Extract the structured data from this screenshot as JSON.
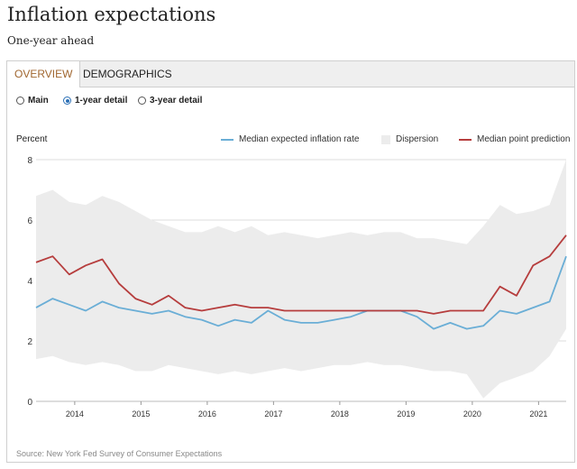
{
  "header": {
    "title": "Inflation expectations",
    "subtitle": "One-year ahead"
  },
  "tabs": [
    {
      "label": "OVERVIEW",
      "active": true
    },
    {
      "label": "DEMOGRAPHICS",
      "active": false
    }
  ],
  "views": [
    {
      "label": "Main",
      "selected": false
    },
    {
      "label": "1-year detail",
      "selected": true
    },
    {
      "label": "3-year detail",
      "selected": false
    }
  ],
  "source": "Source: New York Fed Survey of Consumer Expectations",
  "colors": {
    "median": "#6aaed6",
    "dispersion": "#ececec",
    "point": "#b63d3d",
    "active_tab": "#a0662f"
  },
  "chart_data": {
    "type": "line",
    "ylabel": "Percent",
    "ylim": [
      0,
      8
    ],
    "yticks": [
      "0",
      "2",
      "4",
      "6",
      "8"
    ],
    "xlim": [
      "2013-06",
      "2021-06"
    ],
    "xticks": [
      "2014",
      "2015",
      "2016",
      "2017",
      "2018",
      "2019",
      "2020",
      "2021"
    ],
    "legend_position": "top-right",
    "legend": [
      "Median expected inflation rate",
      "Dispersion",
      "Median point prediction"
    ],
    "median_expected_inflation_rate": {
      "x": [
        "2013-06",
        "2013-09",
        "2013-12",
        "2014-03",
        "2014-06",
        "2014-09",
        "2014-12",
        "2015-03",
        "2015-06",
        "2015-09",
        "2015-12",
        "2016-03",
        "2016-06",
        "2016-09",
        "2016-12",
        "2017-03",
        "2017-06",
        "2017-09",
        "2017-12",
        "2018-03",
        "2018-06",
        "2018-09",
        "2018-12",
        "2019-03",
        "2019-06",
        "2019-09",
        "2019-12",
        "2020-03",
        "2020-06",
        "2020-09",
        "2020-12",
        "2021-03",
        "2021-06"
      ],
      "values": [
        3.1,
        3.4,
        3.2,
        3.0,
        3.3,
        3.1,
        3.0,
        2.9,
        3.0,
        2.8,
        2.7,
        2.5,
        2.7,
        2.6,
        3.0,
        2.7,
        2.6,
        2.6,
        2.7,
        2.8,
        3.0,
        3.0,
        3.0,
        2.8,
        2.4,
        2.6,
        2.4,
        2.5,
        3.0,
        2.9,
        3.1,
        3.3,
        4.8
      ]
    },
    "median_point_prediction": {
      "x": [
        "2013-06",
        "2013-09",
        "2013-12",
        "2014-03",
        "2014-06",
        "2014-09",
        "2014-12",
        "2015-03",
        "2015-06",
        "2015-09",
        "2015-12",
        "2016-03",
        "2016-06",
        "2016-09",
        "2016-12",
        "2017-03",
        "2017-06",
        "2017-09",
        "2017-12",
        "2018-03",
        "2018-06",
        "2018-09",
        "2018-12",
        "2019-03",
        "2019-06",
        "2019-09",
        "2019-12",
        "2020-03",
        "2020-06",
        "2020-09",
        "2020-12",
        "2021-03",
        "2021-06"
      ],
      "values": [
        4.6,
        4.8,
        4.2,
        4.5,
        4.7,
        3.9,
        3.4,
        3.2,
        3.5,
        3.1,
        3.0,
        3.1,
        3.2,
        3.1,
        3.1,
        3.0,
        3.0,
        3.0,
        3.0,
        3.0,
        3.0,
        3.0,
        3.0,
        3.0,
        2.9,
        3.0,
        3.0,
        3.0,
        3.8,
        3.5,
        4.5,
        4.8,
        5.5
      ]
    },
    "dispersion": {
      "x": [
        "2013-06",
        "2013-09",
        "2013-12",
        "2014-03",
        "2014-06",
        "2014-09",
        "2014-12",
        "2015-03",
        "2015-06",
        "2015-09",
        "2015-12",
        "2016-03",
        "2016-06",
        "2016-09",
        "2016-12",
        "2017-03",
        "2017-06",
        "2017-09",
        "2017-12",
        "2018-03",
        "2018-06",
        "2018-09",
        "2018-12",
        "2019-03",
        "2019-06",
        "2019-09",
        "2019-12",
        "2020-03",
        "2020-06",
        "2020-09",
        "2020-12",
        "2021-03",
        "2021-06"
      ],
      "upper": [
        6.8,
        7.0,
        6.6,
        6.5,
        6.8,
        6.6,
        6.3,
        6.0,
        5.8,
        5.6,
        5.6,
        5.8,
        5.6,
        5.8,
        5.5,
        5.6,
        5.5,
        5.4,
        5.5,
        5.6,
        5.5,
        5.6,
        5.6,
        5.4,
        5.4,
        5.3,
        5.2,
        5.8,
        6.5,
        6.2,
        6.3,
        6.5,
        8.0
      ],
      "lower": [
        1.4,
        1.5,
        1.3,
        1.2,
        1.3,
        1.2,
        1.0,
        1.0,
        1.2,
        1.1,
        1.0,
        0.9,
        1.0,
        0.9,
        1.0,
        1.1,
        1.0,
        1.1,
        1.2,
        1.2,
        1.3,
        1.2,
        1.2,
        1.1,
        1.0,
        1.0,
        0.9,
        0.1,
        0.6,
        0.8,
        1.0,
        1.5,
        2.4
      ]
    }
  }
}
